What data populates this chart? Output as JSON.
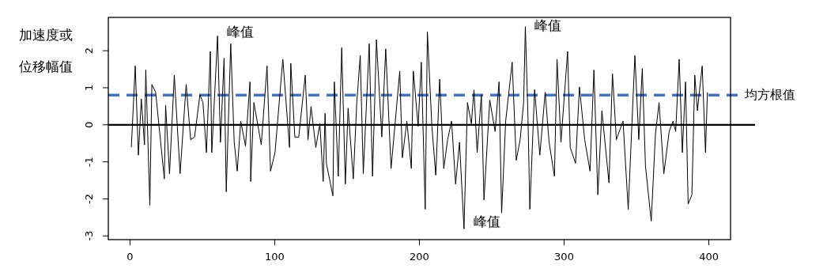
{
  "chart_data": {
    "type": "line",
    "ylabel": "加速度或位移幅值",
    "xlim": [
      -15,
      415
    ],
    "ylim": [
      -3.1,
      2.9
    ],
    "xticks": [
      0,
      100,
      200,
      300,
      400
    ],
    "yticks": [
      -3,
      -2,
      -1,
      0,
      1,
      2
    ],
    "ref_lines": [
      {
        "axis": "y",
        "value": 0,
        "color": "#000000",
        "line_style": "solid"
      },
      {
        "axis": "y",
        "value": 0.8,
        "label": "均方根值",
        "color": "#4472c4",
        "line_style": "dashed"
      }
    ],
    "annotations": [
      {
        "text": "峰值",
        "x": 60.5,
        "y": 2.4
      },
      {
        "text": "峰值",
        "x": 273.2,
        "y": 2.65
      },
      {
        "text": "峰值",
        "x": 230.8,
        "y": -2.81
      }
    ],
    "series": [
      {
        "color": "#000000",
        "x": [
          0.9,
          3.6,
          5.8,
          7.8,
          10.0,
          10.9,
          13.7,
          15.1,
          17.7,
          23.7,
          24.6,
          27.3,
          30.6,
          34.6,
          38.8,
          41.9,
          44.6,
          48.3,
          50.4,
          52.8,
          55.5,
          56.5,
          60.5,
          62.5,
          65.0,
          66.5,
          69.6,
          72.0,
          74.1,
          76.5,
          79.8,
          82.9,
          83.4,
          85.6,
          90.7,
          94.7,
          97.1,
          100.2,
          105.6,
          110.2,
          111.1,
          113.9,
          116.6,
          121.1,
          123.0,
          125.1,
          128.4,
          131.2,
          133.5,
          134.8,
          135.7,
          140.2,
          141.2,
          143.9,
          146.3,
          148.8,
          150.7,
          154.3,
          156.7,
          159.1,
          161.2,
          165.3,
          167.6,
          170.3,
          174.0,
          176.7,
          180.4,
          186.4,
          188.2,
          191.3,
          194.4,
          195.8,
          199.1,
          201.3,
          204.0,
          205.5,
          208.6,
          211.3,
          214.0,
          216.8,
          219.5,
          222.2,
          225.0,
          227.7,
          230.8,
          233.2,
          235.9,
          237.7,
          239.9,
          242.8,
          244.6,
          248.6,
          252.3,
          255.0,
          256.8,
          259.6,
          264.1,
          266.9,
          269.6,
          272.0,
          273.2,
          275.0,
          276.3,
          279.6,
          283.2,
          286.9,
          289.6,
          293.3,
          295.1,
          297.8,
          302.4,
          304.2,
          307.9,
          310.6,
          314.2,
          317.9,
          320.6,
          323.3,
          326.1,
          331.0,
          333.4,
          336.1,
          340.7,
          344.3,
          348.9,
          351.6,
          354.0,
          356.2,
          360.2,
          363.1,
          365.6,
          368.9,
          372.6,
          375.3,
          377.1,
          379.5,
          381.7,
          383.9,
          385.7,
          388.3,
          390.3,
          392.1,
          395.4,
          397.7,
          399.0
        ],
        "values": [
          -0.61,
          1.59,
          -0.82,
          0.7,
          -0.54,
          1.48,
          -2.17,
          1.09,
          0.88,
          -1.46,
          0.53,
          -1.32,
          1.34,
          -1.32,
          1.09,
          -0.4,
          -0.33,
          0.81,
          0.6,
          -0.75,
          1.98,
          -0.75,
          2.4,
          -0.47,
          1.8,
          -1.81,
          2.19,
          -0.47,
          -1.25,
          0.1,
          -0.57,
          1.16,
          -1.53,
          0.6,
          -0.54,
          1.59,
          -1.25,
          -0.75,
          1.77,
          -0.61,
          1.66,
          -0.33,
          -0.33,
          1.34,
          -0.4,
          0.49,
          -0.61,
          0.03,
          -1.53,
          0.31,
          -1.04,
          -1.92,
          1.16,
          -1.39,
          2.08,
          -1.6,
          0.45,
          -1.46,
          0.6,
          1.87,
          -1.32,
          2.19,
          -1.39,
          2.3,
          -0.33,
          2.05,
          -1.18,
          1.45,
          -0.89,
          0.1,
          -1.18,
          1.45,
          -0.04,
          1.69,
          -2.28,
          2.51,
          -0.04,
          -1.36,
          1.23,
          -1.18,
          -0.4,
          0.1,
          -1.6,
          -0.47,
          -2.81,
          0.6,
          0.03,
          0.94,
          -0.75,
          0.81,
          -2.03,
          0.67,
          -0.18,
          1.16,
          -2.38,
          0.1,
          1.69,
          -0.96,
          -0.4,
          0.6,
          2.65,
          0.24,
          -2.28,
          0.95,
          -0.82,
          0.88,
          -0.47,
          -1.39,
          1.77,
          -0.47,
          1.98,
          -0.61,
          -1.04,
          1.02,
          -0.4,
          -1.25,
          1.48,
          -1.89,
          0.38,
          -1.57,
          1.38,
          -0.4,
          0.1,
          -2.28,
          1.87,
          -0.4,
          1.52,
          -1.11,
          -2.6,
          -0.26,
          0.6,
          -1.32,
          -0.18,
          0.1,
          -0.18,
          1.77,
          -0.75,
          1.16,
          -2.14,
          -1.89,
          1.34,
          0.38,
          1.59,
          -0.75,
          0.88
        ]
      }
    ]
  }
}
